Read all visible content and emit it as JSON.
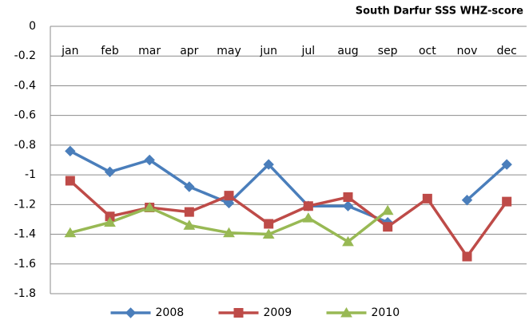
{
  "chart_data": {
    "type": "line",
    "title": "South Darfur SSS WHZ-score",
    "categories": [
      "jan",
      "feb",
      "mar",
      "apr",
      "may",
      "jun",
      "jul",
      "aug",
      "sep",
      "oct",
      "nov",
      "dec"
    ],
    "series": [
      {
        "name": "2008",
        "color": "#4a7ebb",
        "marker": "diamond",
        "values": [
          -0.84,
          -0.98,
          -0.9,
          -1.08,
          -1.19,
          -0.93,
          -1.21,
          -1.21,
          -1.32,
          null,
          -1.17,
          -0.93
        ]
      },
      {
        "name": "2009",
        "color": "#be4b48",
        "marker": "square",
        "values": [
          -1.04,
          -1.28,
          -1.22,
          -1.25,
          -1.14,
          -1.33,
          -1.21,
          -1.15,
          -1.35,
          -1.16,
          -1.55,
          -1.18
        ]
      },
      {
        "name": "2010",
        "color": "#98b954",
        "marker": "triangle",
        "values": [
          -1.39,
          -1.32,
          -1.22,
          -1.34,
          -1.39,
          -1.4,
          -1.29,
          -1.45,
          -1.24,
          null,
          null,
          null
        ]
      }
    ],
    "ylim": [
      -1.8,
      0
    ],
    "yticks": [
      0,
      -0.2,
      -0.4,
      -0.6,
      -0.8,
      -1,
      -1.2,
      -1.4,
      -1.6,
      -1.8
    ],
    "grid": true,
    "legend": "bottom"
  }
}
